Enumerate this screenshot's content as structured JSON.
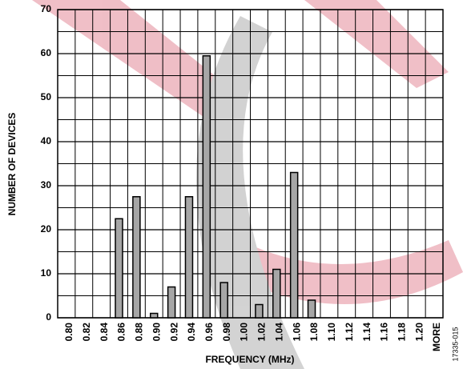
{
  "chart_data": {
    "type": "bar",
    "x_label": "FREQUENCY (MHz)",
    "y_label": "NUMBER OF DEVICES",
    "figure_id": "17335-015",
    "categories": [
      "0.80",
      "0.82",
      "0.84",
      "0.86",
      "0.88",
      "0.90",
      "0.92",
      "0.94",
      "0.96",
      "0.98",
      "1.00",
      "1.02",
      "1.04",
      "1.06",
      "1.08",
      "1.10",
      "1.12",
      "1.14",
      "1.16",
      "1.18",
      "1.20",
      "MORE"
    ],
    "values": [
      0,
      0,
      0,
      22.5,
      27.5,
      1,
      7,
      27.5,
      59.5,
      8,
      0,
      3,
      11,
      33,
      4,
      0,
      0,
      0,
      0,
      0,
      0,
      0
    ],
    "color": "#a6a6a6",
    "ylim": [
      0,
      70
    ],
    "yticks": [
      0,
      10,
      20,
      30,
      40,
      50,
      60,
      70
    ],
    "y_minor_grid": [
      5,
      15,
      25,
      35,
      45,
      55,
      65
    ],
    "grid": true
  }
}
